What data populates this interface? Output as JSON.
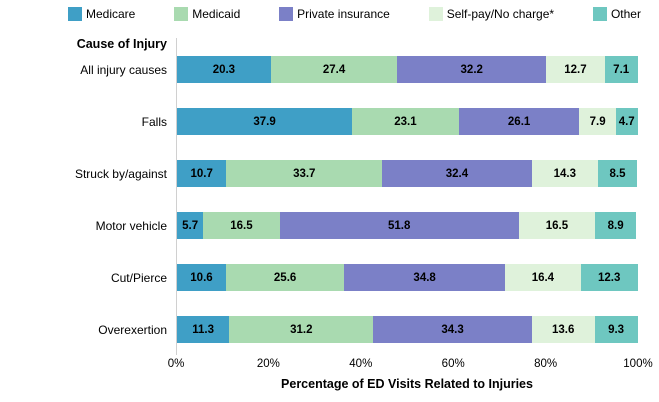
{
  "y_axis_header": "Cause of Injury",
  "x_axis": {
    "title": "Percentage of ED Visits Related to Injuries",
    "ticks": [
      "0%",
      "20%",
      "40%",
      "60%",
      "80%",
      "100%"
    ]
  },
  "colors": {
    "axis_line": "#d0d0d0",
    "value_label": "#000000"
  },
  "chart_data": {
    "type": "bar",
    "orientation": "horizontal",
    "stacked": true,
    "title": "",
    "xlabel": "Percentage of ED Visits Related to Injuries",
    "ylabel": "Cause of Injury",
    "xlim": [
      0,
      100
    ],
    "x_tick_labels": [
      "0%",
      "20%",
      "40%",
      "60%",
      "80%",
      "100%"
    ],
    "grid": false,
    "legend_position": "top",
    "categories": [
      "All injury causes",
      "Falls",
      "Struck by/against",
      "Motor vehicle",
      "Cut/Pierce",
      "Overexertion"
    ],
    "series": [
      {
        "name": "Medicare",
        "color": "#3f9fc6",
        "values": [
          20.3,
          37.9,
          10.7,
          5.7,
          10.6,
          11.3
        ]
      },
      {
        "name": "Medicaid",
        "color": "#a9dab0",
        "values": [
          27.4,
          23.1,
          33.7,
          16.5,
          25.6,
          31.2
        ]
      },
      {
        "name": "Private insurance",
        "color": "#7b80c7",
        "values": [
          32.2,
          26.1,
          32.4,
          51.8,
          34.8,
          34.3
        ]
      },
      {
        "name": "Self-pay/No charge*",
        "color": "#dff2db",
        "values": [
          12.7,
          7.9,
          14.3,
          16.5,
          16.4,
          13.6
        ]
      },
      {
        "name": "Other",
        "color": "#6ec7c0",
        "values": [
          7.1,
          4.7,
          8.5,
          8.9,
          12.3,
          9.3
        ]
      }
    ]
  }
}
